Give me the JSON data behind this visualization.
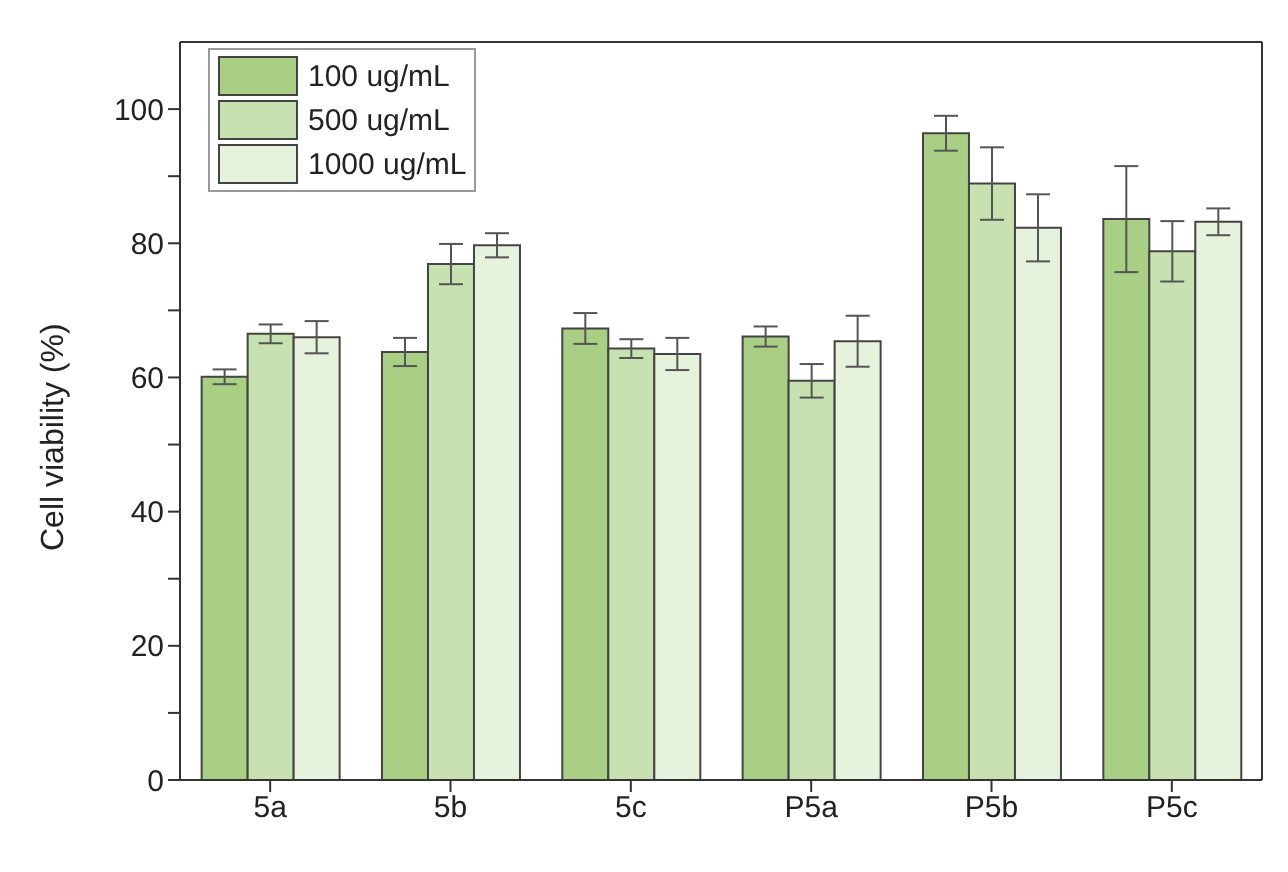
{
  "chart_data": {
    "type": "bar",
    "ylabel": "Cell viability (%)",
    "categories": [
      "5a",
      "5b",
      "5c",
      "P5a",
      "P5b",
      "P5c"
    ],
    "series": [
      {
        "name": "100 ug/mL",
        "color": "#a8cf84",
        "values": [
          60.1,
          63.8,
          67.3,
          66.1,
          96.4,
          83.6
        ],
        "errors": [
          1.1,
          2.1,
          2.3,
          1.5,
          2.6,
          7.9
        ]
      },
      {
        "name": "500 ug/mL",
        "color": "#c7e2b0",
        "values": [
          66.5,
          76.9,
          64.3,
          59.5,
          88.9,
          78.8
        ],
        "errors": [
          1.4,
          3.0,
          1.4,
          2.5,
          5.4,
          4.5
        ]
      },
      {
        "name": "1000 ug/mL",
        "color": "#e6f2db",
        "values": [
          66.0,
          79.7,
          63.5,
          65.4,
          82.3,
          83.2
        ],
        "errors": [
          2.4,
          1.8,
          2.4,
          3.8,
          5.0,
          2.0
        ]
      }
    ],
    "ylim": [
      0,
      110
    ],
    "yticks": [
      0,
      {
        "value": 10,
        "label": null
      },
      20,
      {
        "value": 30,
        "label": null
      },
      40,
      {
        "value": 50,
        "label": null
      },
      60,
      {
        "value": 70,
        "label": null
      },
      80,
      {
        "value": 90,
        "label": null
      },
      100
    ],
    "legend": "top left",
    "grid": false
  }
}
